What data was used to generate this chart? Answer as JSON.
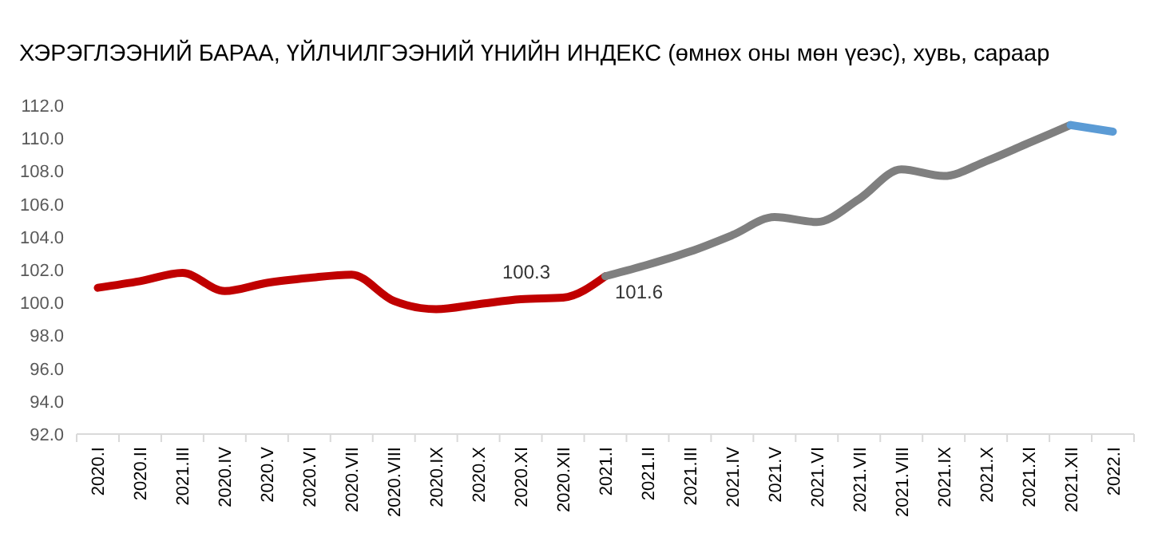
{
  "chart_data": {
    "type": "line",
    "title": "ХЭРЭГЛЭЭНИЙ БАРАА, ҮЙЛЧИЛГЭЭНИЙ ҮНИЙН ИНДЕКС (өмнөх оны мөн үеэс), хувь, сараар",
    "categories": [
      "2020.I",
      "2020.II",
      "2021.III",
      "2020.IV",
      "2020.V",
      "2020.VI",
      "2020.VII",
      "2020.VIII",
      "2020.IX",
      "2020.X",
      "2020.XI",
      "2020.XII",
      "2021.I",
      "2021.II",
      "2021.III",
      "2021.IV",
      "2021.V",
      "2021.VI",
      "2021.VII",
      "2021.VIII",
      "2021.IX",
      "2021.X",
      "2021.XI",
      "2021.XII",
      "2022.I"
    ],
    "series": [
      {
        "color": "#c00000",
        "values": [
          100.9,
          101.3,
          101.8,
          100.7,
          101.2,
          101.5,
          101.7,
          100.1,
          99.6,
          99.9,
          100.2,
          100.3,
          101.6,
          null,
          null,
          null,
          null,
          null,
          null,
          null,
          null,
          null,
          null,
          null,
          null
        ],
        "value_labels": [
          null,
          null,
          null,
          null,
          null,
          null,
          null,
          null,
          null,
          null,
          null,
          "100.3",
          null,
          null,
          null,
          null,
          null,
          null,
          null,
          null,
          null,
          null,
          null,
          null,
          null
        ]
      },
      {
        "color": "#7f7f7f",
        "values": [
          null,
          null,
          null,
          null,
          null,
          null,
          null,
          null,
          null,
          null,
          null,
          null,
          101.6,
          102.3,
          103.1,
          104.1,
          105.2,
          104.9,
          106.3,
          108.1,
          107.7,
          108.6,
          109.7,
          110.8,
          null
        ],
        "value_labels": [
          null,
          null,
          null,
          null,
          null,
          null,
          null,
          null,
          null,
          null,
          null,
          null,
          "101.6",
          null,
          null,
          null,
          null,
          null,
          null,
          null,
          null,
          null,
          null,
          null,
          null
        ]
      },
      {
        "color": "#5b9bd5",
        "values": [
          null,
          null,
          null,
          null,
          null,
          null,
          null,
          null,
          null,
          null,
          null,
          null,
          null,
          null,
          null,
          null,
          null,
          null,
          null,
          null,
          null,
          null,
          null,
          110.8,
          110.4
        ]
      }
    ],
    "ylim": [
      92,
      112
    ],
    "yticks": [
      {
        "value": 92,
        "label": "92.0"
      },
      {
        "value": 94,
        "label": "94.0"
      },
      {
        "value": 96,
        "label": "96.0"
      },
      {
        "value": 98,
        "label": "98.0"
      },
      {
        "value": 100,
        "label": "100.0"
      },
      {
        "value": 102,
        "label": "102.0"
      },
      {
        "value": 104,
        "label": "104.0"
      },
      {
        "value": 106,
        "label": "106.0"
      },
      {
        "value": 108,
        "label": "108.0"
      },
      {
        "value": 110,
        "label": "110.0"
      },
      {
        "value": 112,
        "label": "112.0"
      }
    ],
    "grid": false,
    "marker": "none",
    "line_style": "solid"
  }
}
